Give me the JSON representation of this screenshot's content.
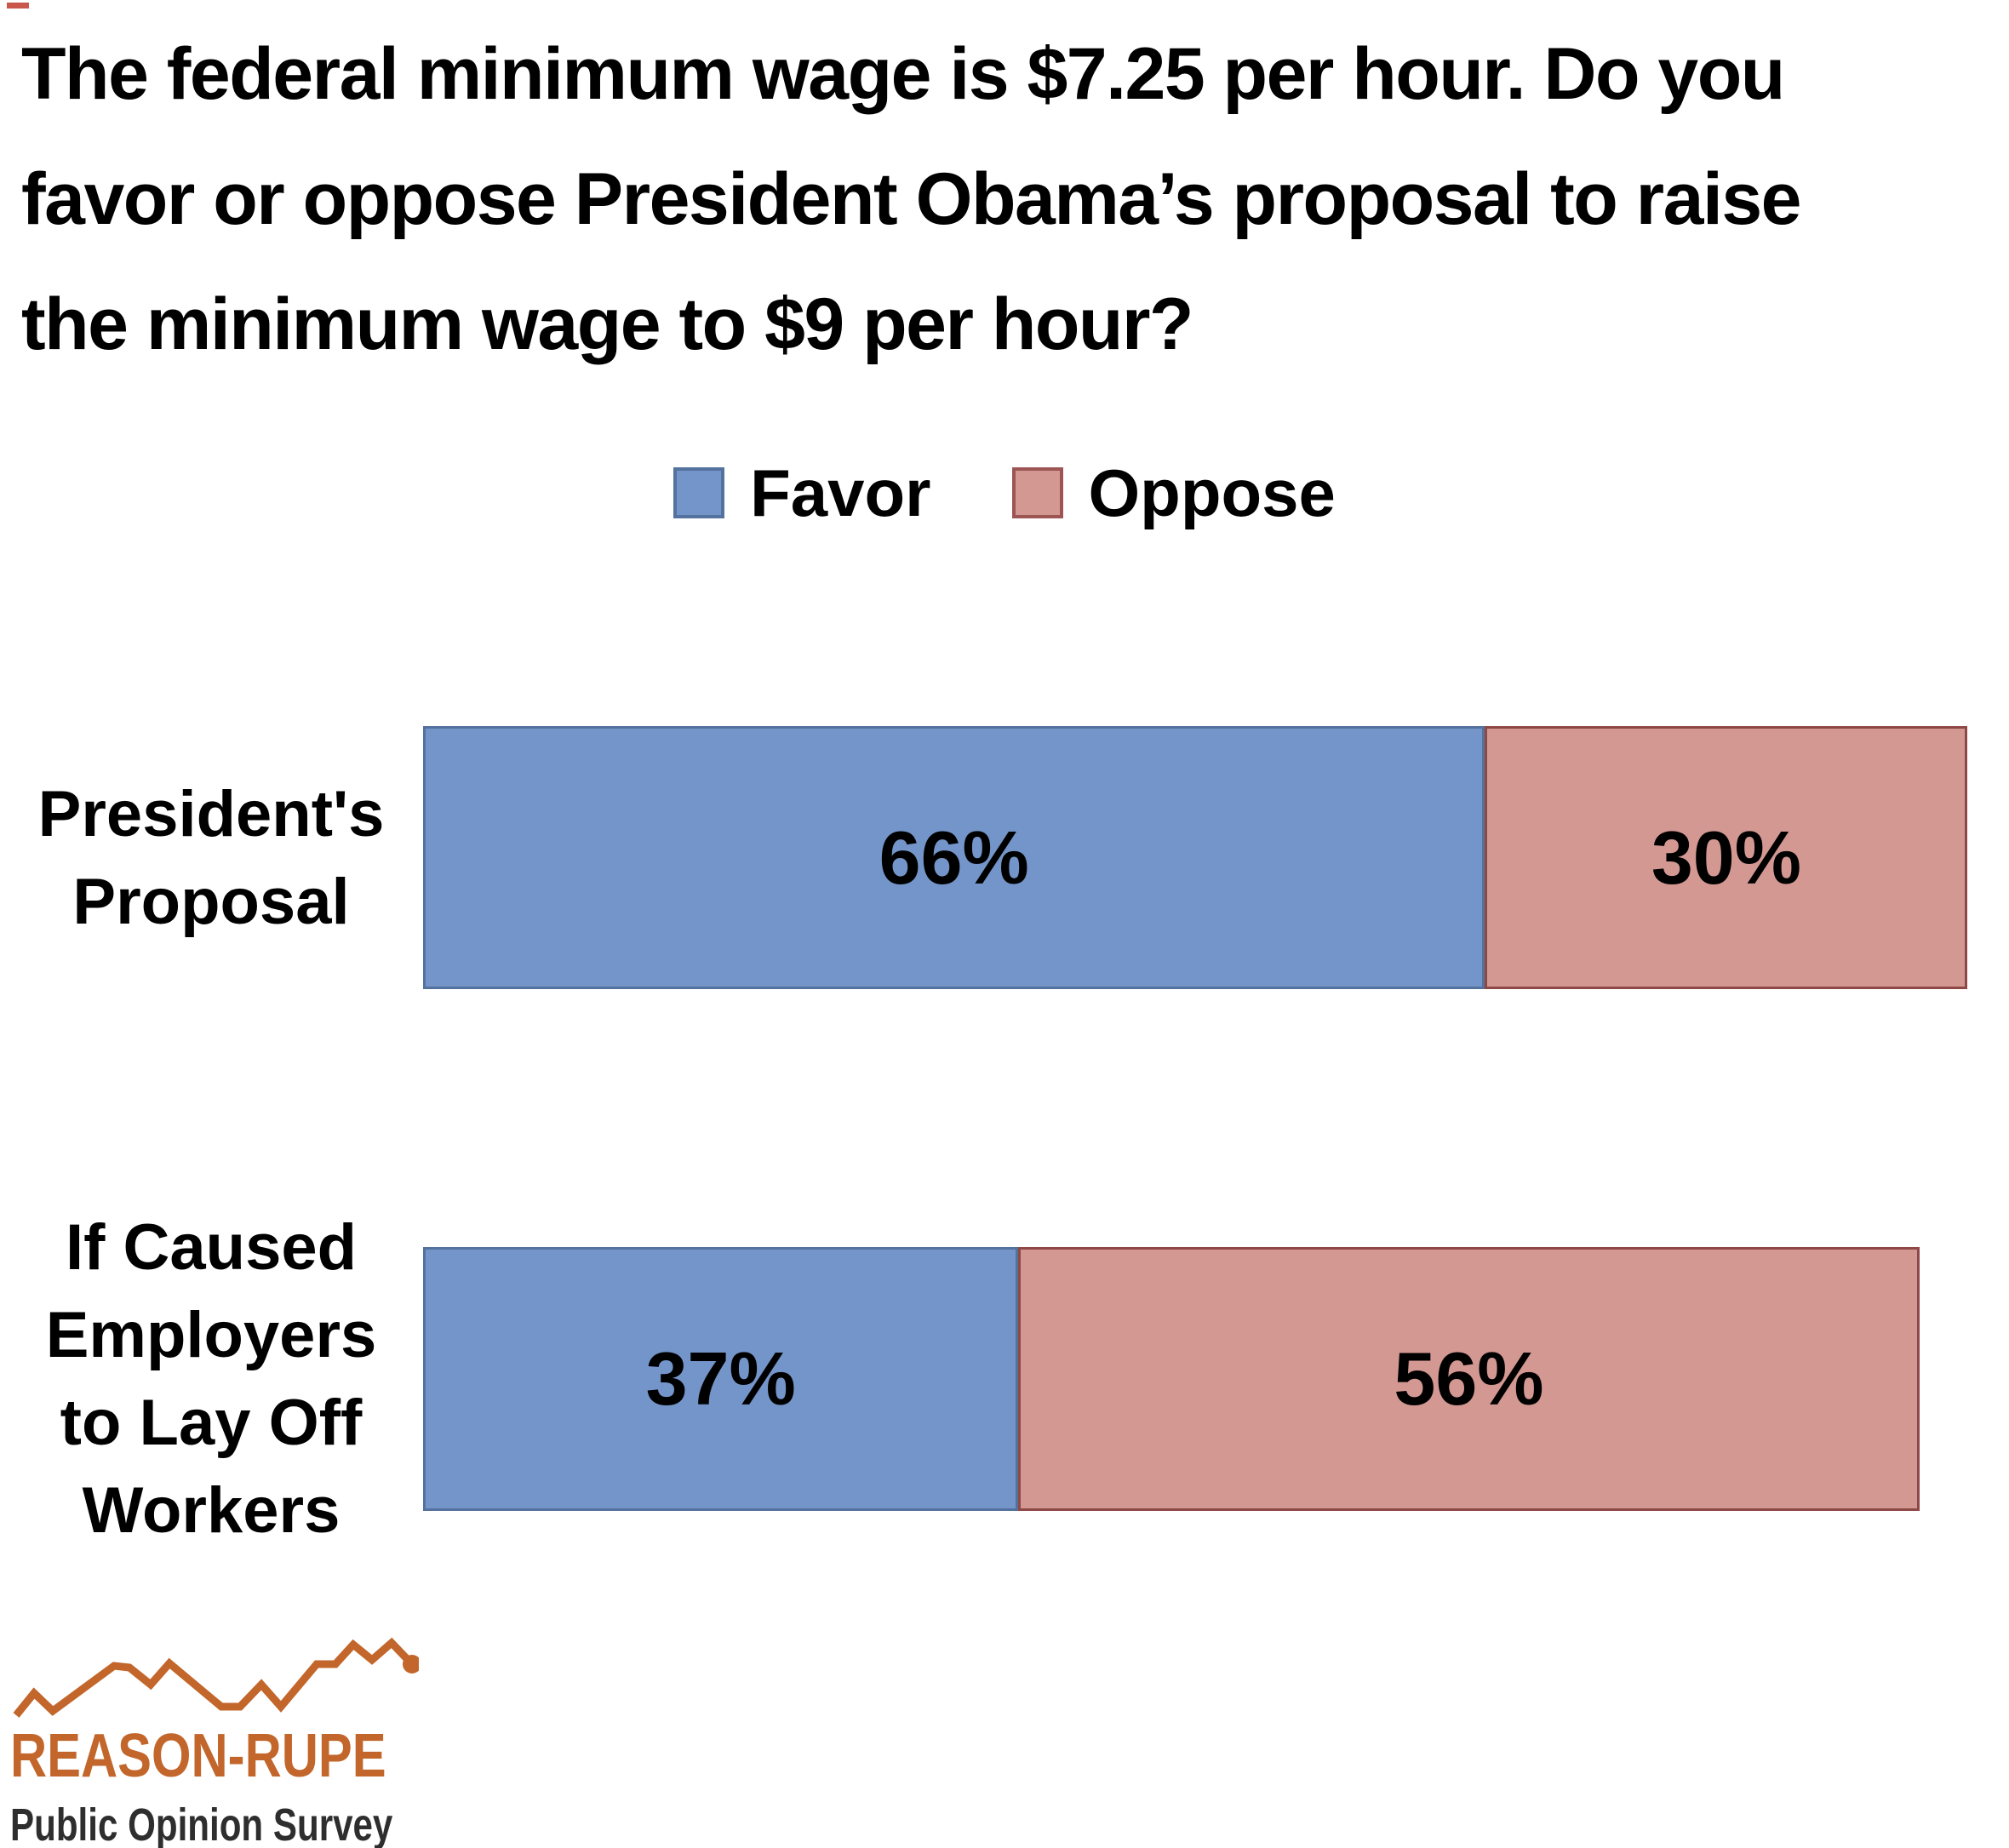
{
  "title": {
    "text": "The federal minimum wage is $7.25 per hour. Do you favor or oppose President Obama’s proposal to raise the minimum wage to $9 per hour?",
    "lines": [
      "The federal minimum wage is $7.25 per hour. Do you",
      "favor or oppose President Obama’s proposal to raise",
      "the minimum wage to $9 per hour?"
    ]
  },
  "legend": {
    "items": [
      {
        "label": "Favor",
        "color": "#7495C9",
        "border_color": "#54729E"
      },
      {
        "label": "Oppose",
        "color": "#D49893",
        "border_color": "#9C5553"
      }
    ]
  },
  "chart_data": {
    "type": "bar",
    "stacked": true,
    "orientation": "horizontal",
    "grid": false,
    "legend_position": "top-center",
    "xlim": [
      0,
      100
    ],
    "unit": "percent",
    "categories": [
      "President's Proposal",
      "If Caused Employers to Lay Off Workers"
    ],
    "series": [
      {
        "name": "Favor",
        "color": "#7495C9",
        "values": [
          66,
          37
        ]
      },
      {
        "name": "Oppose",
        "color": "#D49893",
        "values": [
          30,
          56
        ]
      }
    ],
    "rows": [
      {
        "label_lines": [
          "President's",
          "Proposal"
        ],
        "favor_pct": 66,
        "oppose_pct": 30,
        "favor_label": "66%",
        "oppose_label": "30%"
      },
      {
        "label_lines": [
          "If Caused",
          "Employers",
          "to Lay Off",
          "Workers"
        ],
        "favor_pct": 37,
        "oppose_pct": 56,
        "favor_label": "37%",
        "oppose_label": "56%"
      }
    ]
  },
  "footer": {
    "brand": "REASON-RUPE",
    "tagline": "Public Opinion Survey",
    "accent_color": "#C2662B",
    "tagline_color": "#2E2E2E",
    "sparkline_icon": "zigzag-line-chart-icon"
  },
  "colors": {
    "background": "#FFFFFF",
    "text": "#000000",
    "favor_fill": "#7495C9",
    "favor_border": "#54729E",
    "oppose_fill": "#D49893",
    "oppose_border": "#8E4946"
  }
}
